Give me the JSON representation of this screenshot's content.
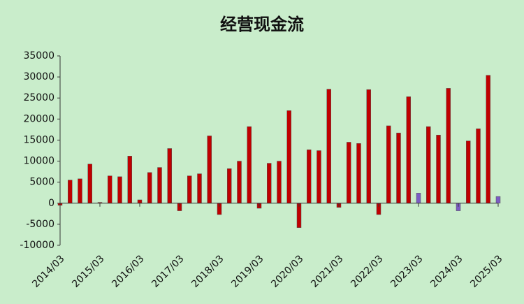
{
  "chart_data": {
    "type": "bar",
    "title": "经营现金流",
    "categories": [
      "2014/03",
      null,
      null,
      null,
      "2015/03",
      null,
      null,
      null,
      "2016/03",
      null,
      null,
      null,
      "2017/03",
      null,
      null,
      null,
      "2018/03",
      null,
      null,
      null,
      "2019/03",
      null,
      null,
      null,
      "2020/03",
      null,
      null,
      null,
      "2021/03",
      null,
      null,
      null,
      "2022/03",
      null,
      null,
      null,
      "2023/03",
      null,
      null,
      null,
      "2024/03",
      null,
      null,
      null,
      "2025/03"
    ],
    "values": [
      -500,
      5500,
      5800,
      9300,
      200,
      6500,
      6300,
      11200,
      800,
      7300,
      8500,
      13000,
      -1800,
      6500,
      7000,
      16000,
      -2700,
      8200,
      10000,
      18200,
      -1200,
      9500,
      10000,
      22000,
      -5800,
      12700,
      12500,
      27100,
      -1000,
      14500,
      14200,
      27000,
      -2700,
      18400,
      16700,
      25300,
      2400,
      18200,
      16200,
      27300,
      -1800,
      14800,
      17700,
      30400,
      1600
    ],
    "colors": [
      "#c00000",
      "#c00000",
      "#c00000",
      "#c00000",
      "#c00000",
      "#c00000",
      "#c00000",
      "#c00000",
      "#c00000",
      "#c00000",
      "#c00000",
      "#c00000",
      "#c00000",
      "#c00000",
      "#c00000",
      "#c00000",
      "#c00000",
      "#c00000",
      "#c00000",
      "#c00000",
      "#c00000",
      "#c00000",
      "#c00000",
      "#c00000",
      "#c00000",
      "#c00000",
      "#c00000",
      "#c00000",
      "#c00000",
      "#c00000",
      "#c00000",
      "#c00000",
      "#c00000",
      "#c00000",
      "#c00000",
      "#c00000",
      "#7b5cc4",
      "#c00000",
      "#c00000",
      "#c00000",
      "#7b5cc4",
      "#c00000",
      "#c00000",
      "#c00000",
      "#7b5cc4"
    ],
    "ylim": [
      -10000,
      35000
    ],
    "yticks": [
      -10000,
      -5000,
      0,
      5000,
      10000,
      15000,
      20000,
      25000,
      30000,
      35000
    ]
  }
}
